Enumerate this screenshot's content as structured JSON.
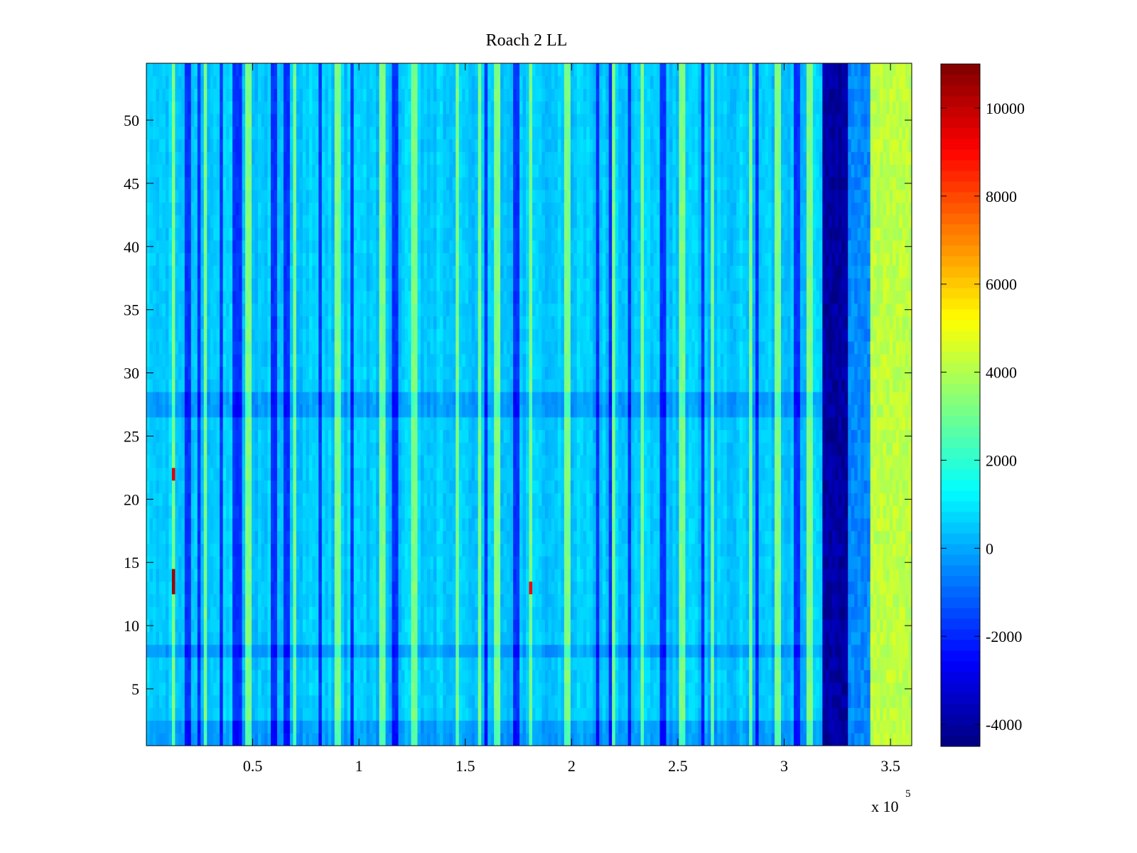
{
  "chart_data": {
    "type": "heatmap",
    "title": "Roach 2 LL",
    "xlabel": "",
    "ylabel": "",
    "x_multiplier_label": "x 10",
    "x_multiplier_exponent": "5",
    "xlim": [
      0,
      360000
    ],
    "ylim": [
      0.5,
      54.5
    ],
    "x_tick_values": [
      0.5,
      1,
      1.5,
      2,
      2.5,
      3,
      3.5
    ],
    "x_tick_labels": [
      "0.5",
      "1",
      "1.5",
      "2",
      "2.5",
      "3",
      "3.5"
    ],
    "y_tick_values": [
      5,
      10,
      15,
      20,
      25,
      30,
      35,
      40,
      45,
      50
    ],
    "y_tick_labels": [
      "5",
      "10",
      "15",
      "20",
      "25",
      "30",
      "35",
      "40",
      "45",
      "50"
    ],
    "n_rows": 54,
    "colormap": "jet",
    "colorbar": {
      "clim": [
        -4500,
        11000
      ],
      "tick_values": [
        -4000,
        -2000,
        0,
        2000,
        4000,
        6000,
        8000,
        10000
      ],
      "tick_labels": [
        "-4000",
        "-2000",
        "0",
        "2000",
        "4000",
        "6000",
        "8000",
        "10000"
      ]
    },
    "background_level": 500,
    "dark_stripe_lines_x": [
      19500,
      25000,
      35000,
      42000,
      44000,
      59000,
      61000,
      66000,
      67000,
      82000,
      97000,
      117000,
      160000,
      174000,
      212000,
      218000,
      227000,
      243000,
      262000,
      287000,
      306000
    ],
    "bright_stripe_lines_x": [
      13000,
      28000,
      48000,
      70000,
      90000,
      111000,
      126000,
      146000,
      157000,
      165000,
      181000,
      198000,
      220000,
      233000,
      252000,
      266000,
      284000,
      297000,
      312000
    ],
    "bands": [
      {
        "x_start": 318000,
        "x_end": 330000,
        "value": -4000
      },
      {
        "x_start": 330000,
        "x_end": 340000,
        "value": -500
      },
      {
        "x_start": 340000,
        "x_end": 360000,
        "value": 4200
      }
    ],
    "low_rows": [
      1,
      2,
      8,
      27,
      28
    ],
    "hot_spots": [
      {
        "x": 12500,
        "y": 13.5,
        "value": 10500
      },
      {
        "x": 12500,
        "y": 22,
        "value": 9500
      },
      {
        "x": 181000,
        "y": 13,
        "value": 9000
      }
    ],
    "grid": false
  }
}
